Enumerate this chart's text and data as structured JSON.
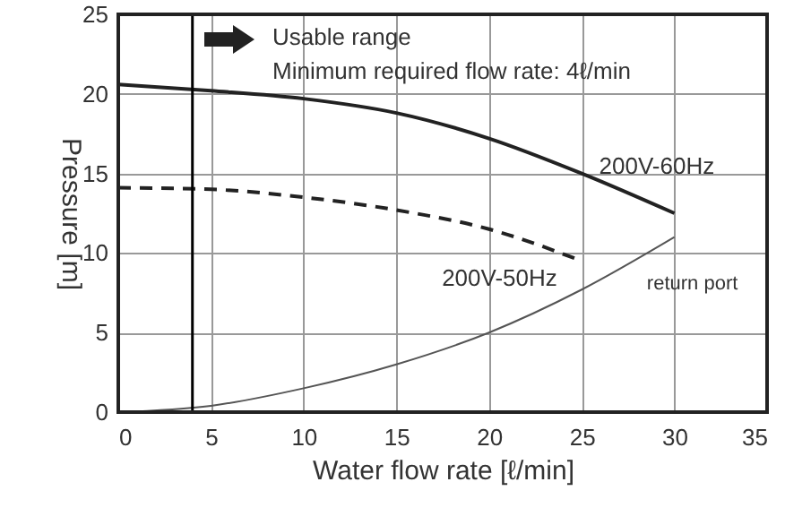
{
  "chart_data": {
    "type": "line",
    "xlabel": "Water flow rate [ℓ/min]",
    "ylabel": "Pressure [m]",
    "x": [
      0,
      5,
      10,
      15,
      20,
      25,
      30
    ],
    "series": [
      {
        "name": "200V-60Hz",
        "color": "#222222",
        "line_style": "solid",
        "values": [
          20.6,
          20.2,
          19.7,
          18.8,
          17.2,
          15.0,
          12.5
        ]
      },
      {
        "name": "200V-50Hz",
        "color": "#222222",
        "line_style": "dashed",
        "values": [
          14.1,
          14.0,
          13.5,
          12.7,
          11.5,
          9.5,
          null
        ]
      },
      {
        "name": "return port",
        "color": "#555555",
        "line_style": "solid",
        "values": [
          0,
          0.4,
          1.5,
          3.0,
          5.0,
          7.7,
          11.0
        ]
      }
    ],
    "xlim": [
      0,
      35
    ],
    "xticks": [
      0,
      5,
      10,
      15,
      20,
      25,
      30,
      35
    ],
    "ylim": [
      0,
      25
    ],
    "yticks": [
      0,
      5,
      10,
      15,
      20,
      25
    ],
    "grid": true,
    "ref_lines": [
      {
        "axis": "x",
        "value": 4,
        "color": "#000000"
      }
    ],
    "annotations": [
      "Usable range",
      "Minimum required flow rate: 4ℓ/min"
    ]
  }
}
